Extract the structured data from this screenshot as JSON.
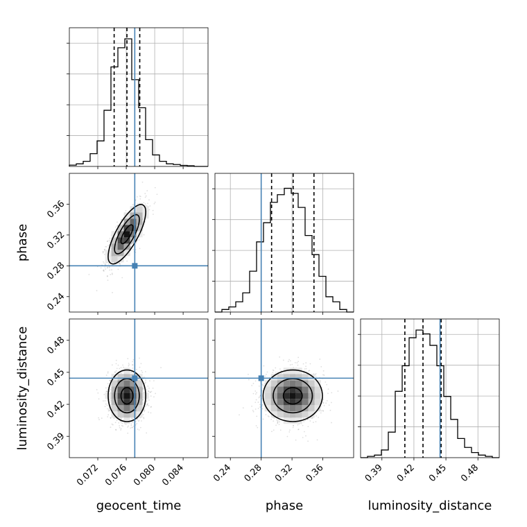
{
  "chart_data": {
    "type": "corner",
    "parameters": [
      {
        "name": "geocent_time",
        "label": "geocent_time",
        "range": [
          0.068,
          0.0875
        ],
        "ticks": [
          0.072,
          0.076,
          0.08,
          0.084
        ],
        "tick_labels": [
          "0.072",
          "0.076",
          "0.080",
          "0.084"
        ],
        "truth": 0.0772,
        "quantiles": [
          0.0743,
          0.0761,
          0.0779
        ],
        "mean": 0.0761,
        "sd": 0.0012
      },
      {
        "name": "phase",
        "label": "phase",
        "range": [
          0.22,
          0.4
        ],
        "ticks": [
          0.24,
          0.28,
          0.32,
          0.36
        ],
        "tick_labels": [
          "0.24",
          "0.28",
          "0.32",
          "0.36"
        ],
        "truth": 0.28,
        "quantiles": [
          0.2935,
          0.3215,
          0.3485
        ],
        "mean": 0.321,
        "sd": 0.0175
      },
      {
        "name": "luminosity_distance",
        "label": "luminosity_distance",
        "range": [
          0.37,
          0.5
        ],
        "ticks": [
          0.39,
          0.42,
          0.45,
          0.48
        ],
        "tick_labels": [
          "0.39",
          "0.42",
          "0.45",
          "0.48"
        ],
        "truth": 0.4445,
        "quantiles": [
          0.4115,
          0.4285,
          0.4455
        ],
        "mean": 0.428,
        "sd": 0.011
      }
    ],
    "histograms": {
      "geocent_time": [
        0.01,
        0.02,
        0.04,
        0.1,
        0.2,
        0.44,
        0.78,
        0.93,
        1.0,
        0.68,
        0.46,
        0.21,
        0.09,
        0.04,
        0.02,
        0.015,
        0.008,
        0.005,
        0.0,
        0.0
      ],
      "phase": [
        0.0,
        0.02,
        0.04,
        0.08,
        0.15,
        0.32,
        0.55,
        0.7,
        0.86,
        0.92,
        0.97,
        0.93,
        0.82,
        0.6,
        0.45,
        0.28,
        0.12,
        0.08,
        0.02,
        0.0
      ],
      "luminosity_distance": [
        0.0,
        0.01,
        0.02,
        0.06,
        0.2,
        0.52,
        0.72,
        0.94,
        1.0,
        0.97,
        0.88,
        0.72,
        0.48,
        0.3,
        0.15,
        0.08,
        0.04,
        0.02,
        0.01,
        0.0
      ]
    },
    "correlations": {
      "geocent_time|phase": 0.75,
      "geocent_time|luminosity_distance": 0.0,
      "phase|luminosity_distance": 0.0
    },
    "truth_color": "#4682b4",
    "hist_color": "#000000",
    "quantile_style": "dashed",
    "grid": true
  }
}
